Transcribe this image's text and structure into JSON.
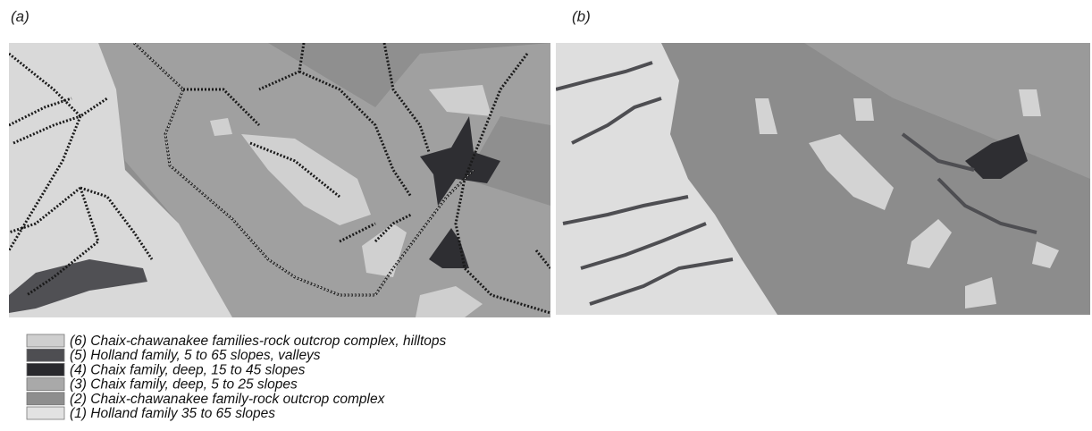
{
  "panels": [
    {
      "label": "(a)"
    },
    {
      "label": "(b)"
    }
  ],
  "legend": [
    {
      "text": "(6) Chaix-chawanakee families-rock outcrop complex, hilltops",
      "color": "#cfcfcf"
    },
    {
      "text": "(5) Holland family, 5 to 65 slopes, valleys",
      "color": "#4e4e52"
    },
    {
      "text": "(4) Chaix family, deep, 15 to 45 slopes",
      "color": "#2a2a2e"
    },
    {
      "text": "(3) Chaix family, deep, 5 to 25 slopes",
      "color": "#a9a9a9"
    },
    {
      "text": "(2) Chaix-chawanakee family-rock outcrop complex",
      "color": "#8e8e8e"
    },
    {
      "text": "(1) Holland family 35 to 65 slopes",
      "color": "#e2e2e2"
    }
  ]
}
